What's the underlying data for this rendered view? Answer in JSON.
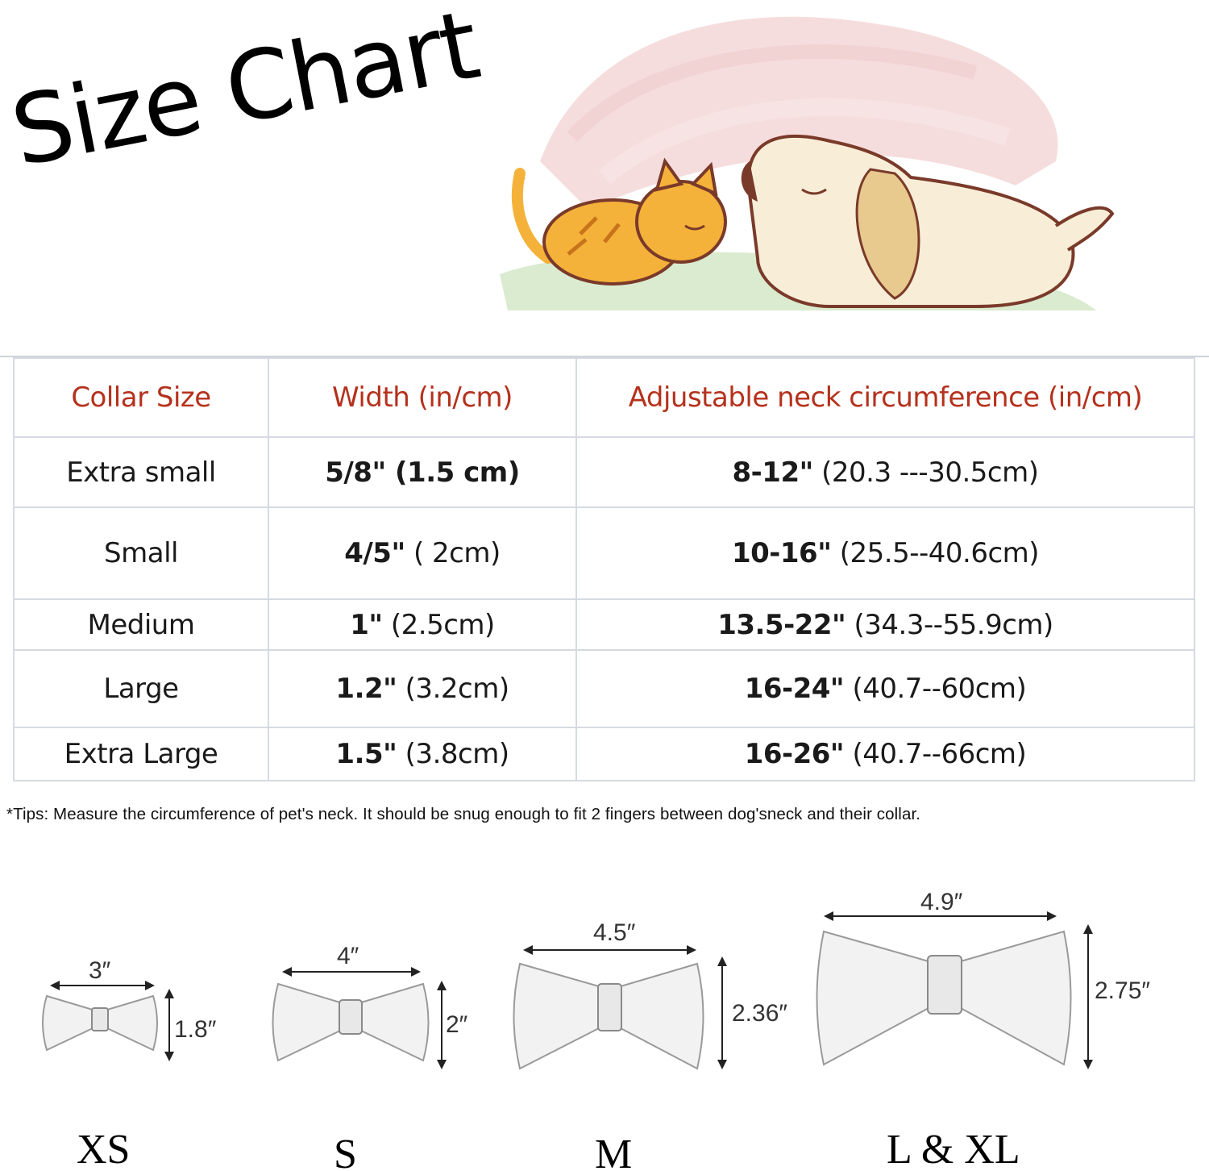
{
  "title": "Size Chart",
  "illustration": {
    "subject": "sleeping cat and dog",
    "colors": {
      "cat": "#f5b23a",
      "dog": "#f7ecd4",
      "outline": "#7a3a2a",
      "sky": "#f0c8c8",
      "grass": "#cfe3c4"
    }
  },
  "table": {
    "headers": [
      "Collar Size",
      "Width (in/cm)",
      "Adjustable neck circumference  (in/cm)"
    ],
    "header_color": "#b5311c",
    "rows": [
      {
        "size": "Extra small",
        "width_bold": "5/8\" (1.5 cm)",
        "width_rest": "",
        "neck_bold": "8-12\"",
        "neck_rest": " (20.3 ---30.5cm)"
      },
      {
        "size": "Small",
        "width_bold": "4/5\"",
        "width_rest": " ( 2cm)",
        "neck_bold": "10-16\"",
        "neck_rest": " (25.5--40.6cm)"
      },
      {
        "size": "Medium",
        "width_bold": "1\"",
        "width_rest": " (2.5cm)",
        "neck_bold": "13.5-22\"",
        "neck_rest": " (34.3--55.9cm)"
      },
      {
        "size": "Large",
        "width_bold": "1.2\"",
        "width_rest": " (3.2cm)",
        "neck_bold": "16-24\"",
        "neck_rest": " (40.7--60cm)"
      },
      {
        "size": "Extra Large",
        "width_bold": "1.5\"",
        "width_rest": " (3.8cm)",
        "neck_bold": "16-26\"",
        "neck_rest": " (40.7--66cm)"
      }
    ]
  },
  "tips": "*Tips: Measure the circumference of pet's neck. It should be snug enough to fit 2 fingers between dog'sneck and their collar.",
  "bows": [
    {
      "label": "XS",
      "width": "3″",
      "height": "1.8″"
    },
    {
      "label": "S",
      "width": "4″",
      "height": "2″"
    },
    {
      "label": "M",
      "width": "4.5″",
      "height": "2.36″"
    },
    {
      "label": "L & XL",
      "width": "4.9″",
      "height": "2.75″"
    }
  ]
}
